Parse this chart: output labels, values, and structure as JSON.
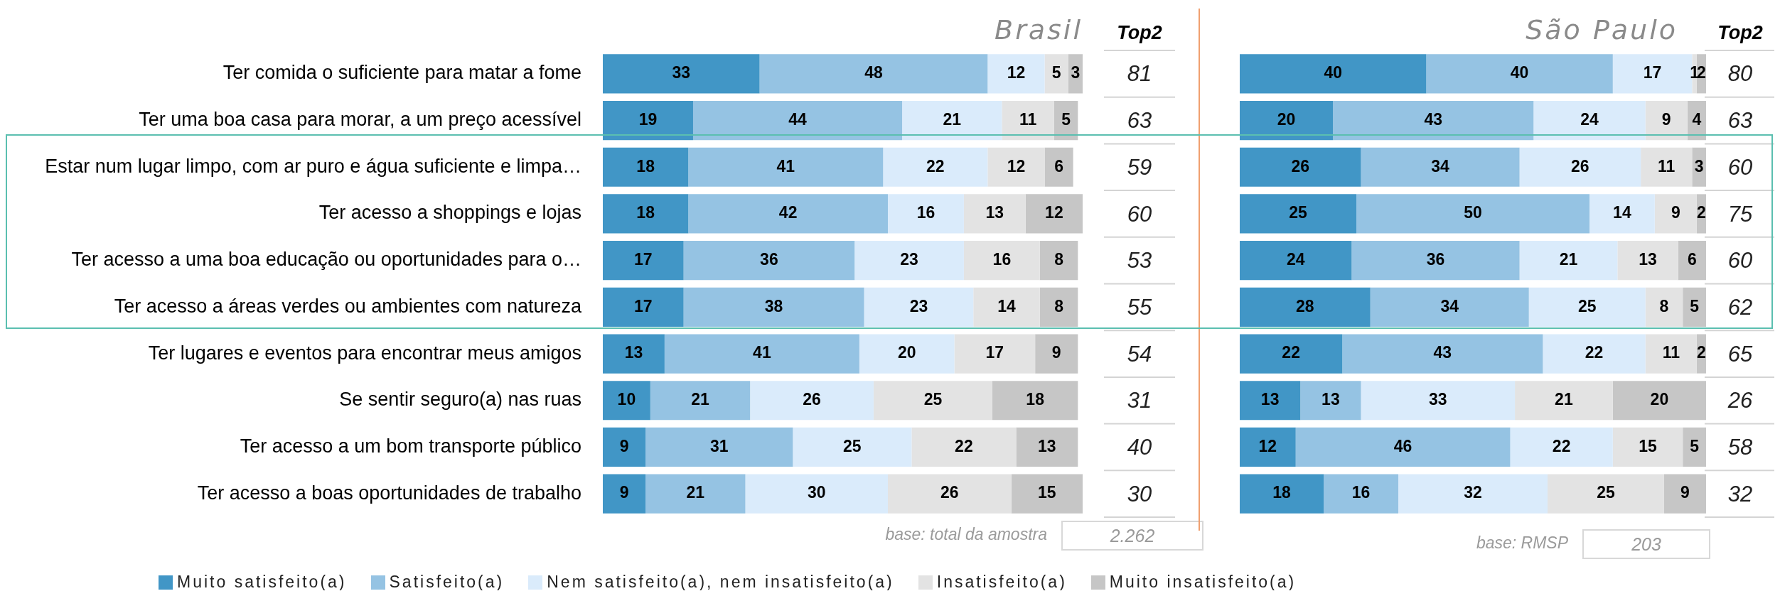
{
  "chart_data": [
    {
      "type": "bar",
      "title": "Brasil",
      "orientation": "horizontal",
      "stacked": true,
      "data_labels": true,
      "tick_labels": "y",
      "legend": "bottom",
      "categories": [
        "Ter comida o suficiente para matar a fome",
        "Ter uma boa casa para morar, a um preço acessível",
        "Estar num lugar limpo, com ar puro e água suficiente e limpa…",
        "Ter acesso a shoppings e lojas",
        "Ter acesso a uma boa educação ou oportunidades para o…",
        "Ter acesso a áreas verdes ou ambientes com natureza",
        "Ter lugares e eventos para encontrar meus amigos",
        "Se sentir seguro(a) nas ruas",
        "Ter acesso a um bom transporte público",
        "Ter acesso a boas oportunidades de trabalho"
      ],
      "series": [
        {
          "name": "Muito satisfeito(a)",
          "color": "#4196c6",
          "values": [
            33,
            19,
            18,
            18,
            17,
            17,
            13,
            10,
            9,
            9
          ]
        },
        {
          "name": "Satisfeito(a)",
          "color": "#95c3e3",
          "values": [
            48,
            44,
            41,
            42,
            36,
            38,
            41,
            21,
            31,
            21
          ]
        },
        {
          "name": "Nem satisfeito(a), nem insatisfeito(a)",
          "color": "#daebfb",
          "values": [
            12,
            21,
            22,
            16,
            23,
            23,
            20,
            26,
            25,
            30
          ]
        },
        {
          "name": "Insatisfeito(a)",
          "color": "#e3e3e3",
          "values": [
            5,
            11,
            12,
            13,
            16,
            14,
            17,
            25,
            22,
            26
          ]
        },
        {
          "name": "Muito insatisfeito(a)",
          "color": "#c6c6c6",
          "values": [
            3,
            5,
            6,
            12,
            8,
            8,
            9,
            18,
            13,
            15
          ]
        }
      ],
      "annotations": [
        "Top2",
        "81",
        "63",
        "59",
        "60",
        "53",
        "55",
        "54",
        "31",
        "40",
        "30",
        "base: total da amostra",
        "2.262"
      ]
    },
    {
      "type": "bar",
      "title": "São Paulo",
      "orientation": "horizontal",
      "stacked": true,
      "data_labels": true,
      "tick_labels": false,
      "categories": [
        null,
        null,
        null,
        null,
        null,
        null,
        null,
        null,
        null,
        null
      ],
      "series": [
        {
          "color": "#4196c6",
          "values": [
            40,
            20,
            26,
            25,
            24,
            28,
            22,
            13,
            12,
            18
          ]
        },
        {
          "color": "#95c3e3",
          "values": [
            40,
            43,
            34,
            50,
            36,
            34,
            43,
            13,
            46,
            16
          ]
        },
        {
          "color": "#daebfb",
          "values": [
            17,
            24,
            26,
            14,
            21,
            25,
            22,
            33,
            22,
            32
          ]
        },
        {
          "color": "#e3e3e3",
          "values": [
            1,
            9,
            11,
            9,
            13,
            8,
            11,
            21,
            15,
            25
          ]
        },
        {
          "color": "#c6c6c6",
          "values": [
            2,
            4,
            3,
            2,
            6,
            5,
            2,
            20,
            5,
            9
          ]
        }
      ],
      "annotations": [
        "Top2",
        "80",
        "63",
        "60",
        "75",
        "60",
        "62",
        "65",
        "26",
        "58",
        "32",
        "base: RMSP",
        "203"
      ]
    }
  ]
}
